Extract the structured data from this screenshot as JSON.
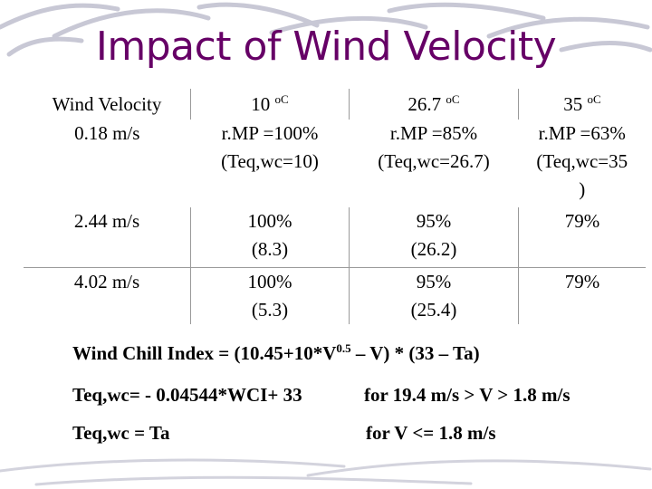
{
  "title": "Impact of Wind Velocity",
  "table": {
    "header": [
      "Wind Velocity",
      "10 ",
      "26.7 ",
      "35 "
    ],
    "header_units": [
      "",
      "oC",
      "oC",
      "oC"
    ],
    "rows": [
      {
        "velocity": "0.18 m/s",
        "c1": [
          "r.MP =100%",
          "(Teq,wc=10)"
        ],
        "c2": [
          "r.MP =85%",
          "(Teq,wc=26.7)"
        ],
        "c3": [
          "r.MP =63%",
          "(Teq,wc=35",
          ")"
        ]
      },
      {
        "velocity": "2.44 m/s",
        "c1": [
          "100%",
          "(8.3)"
        ],
        "c2": [
          "95%",
          "(26.2)"
        ],
        "c3": [
          "79%"
        ]
      },
      {
        "velocity": "4.02 m/s",
        "c1": [
          "100%",
          "(5.3)"
        ],
        "c2": [
          "95%",
          "(25.4)"
        ],
        "c3": [
          "79%"
        ]
      }
    ]
  },
  "formula": {
    "wci_prefix": "Wind Chill Index = (10.45+10*V",
    "wci_exp": "0.5",
    "wci_suffix": " – V) * (33 – Ta)",
    "teq1": "Teq,wc= - 0.04544*WCI+ 33",
    "cond1": "for 19.4 m/s > V > 1.8 m/s",
    "teq2": "Teq,wc = Ta",
    "cond2": "for V <= 1.8 m/s"
  },
  "colors": {
    "title": "#660066",
    "decor": "#8c8ca8"
  }
}
